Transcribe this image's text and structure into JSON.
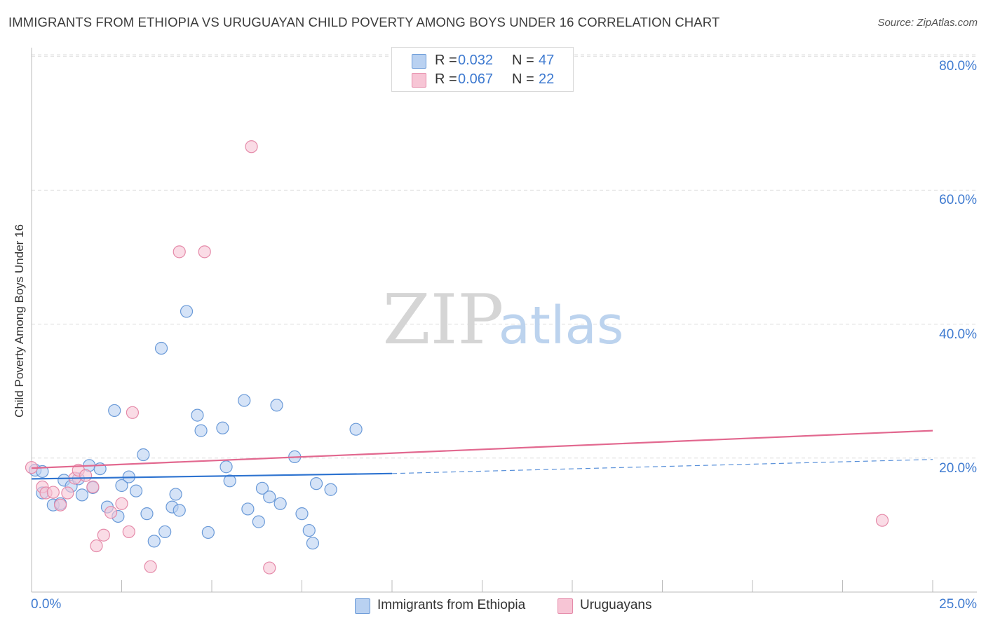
{
  "header": {
    "title": "IMMIGRANTS FROM ETHIOPIA VS URUGUAYAN CHILD POVERTY AMONG BOYS UNDER 16 CORRELATION CHART",
    "source": "Source: ZipAtlas.com"
  },
  "watermark": {
    "zip": "ZIP",
    "atlas": "atlas"
  },
  "stats_box": {
    "rows": [
      {
        "r_label": "R = ",
        "r_value": "0.032",
        "n_label": "N = ",
        "n_value": "47"
      },
      {
        "r_label": "R = ",
        "r_value": "0.067",
        "n_label": "N = ",
        "n_value": "22"
      }
    ]
  },
  "legend": {
    "items": [
      {
        "label": "Immigrants from Ethiopia"
      },
      {
        "label": "Uruguayans"
      }
    ]
  },
  "colors": {
    "blue_fill": "#b9d1f1",
    "blue_stroke": "#6a9ad8",
    "blue_line": "#2d73d0",
    "pink_fill": "#f7c5d5",
    "pink_stroke": "#e58aa9",
    "pink_line": "#e2688f",
    "tick_text": "#3e7ad0",
    "grid": "#dcdcdc"
  },
  "chart_data": {
    "type": "scatter",
    "ylabel": "Child Poverty Among Boys Under 16",
    "xlim": [
      0,
      25
    ],
    "ylim": [
      0,
      80
    ],
    "x_tick_labels": {
      "min": "0.0%",
      "max": "25.0%"
    },
    "y_ticks": [
      {
        "value": 20,
        "label": "20.0%"
      },
      {
        "value": 40,
        "label": "40.0%"
      },
      {
        "value": 60,
        "label": "60.0%"
      },
      {
        "value": 80,
        "label": "80.0%"
      }
    ],
    "grid": true,
    "legend_position": "bottom-center",
    "series": [
      {
        "name": "Immigrants from Ethiopia",
        "r": 0.032,
        "n": 47,
        "trend": {
          "x0": 0.0,
          "y0": 16.9,
          "x1": 10.0,
          "y1": 17.7,
          "dash_to_x": 25.0,
          "dash_to_y": 19.8
        },
        "points": [
          [
            0.1,
            18.2
          ],
          [
            0.3,
            18.0
          ],
          [
            0.3,
            14.8
          ],
          [
            0.6,
            13.0
          ],
          [
            0.8,
            13.2
          ],
          [
            0.9,
            16.7
          ],
          [
            1.1,
            15.8
          ],
          [
            1.3,
            16.9
          ],
          [
            1.4,
            14.5
          ],
          [
            1.6,
            18.9
          ],
          [
            1.7,
            15.6
          ],
          [
            1.9,
            18.4
          ],
          [
            2.1,
            12.7
          ],
          [
            2.3,
            27.1
          ],
          [
            2.4,
            11.3
          ],
          [
            2.5,
            15.9
          ],
          [
            2.7,
            17.2
          ],
          [
            2.9,
            15.1
          ],
          [
            3.1,
            20.5
          ],
          [
            3.2,
            11.7
          ],
          [
            3.4,
            7.6
          ],
          [
            3.6,
            36.4
          ],
          [
            3.7,
            9.0
          ],
          [
            3.9,
            12.7
          ],
          [
            4.0,
            14.6
          ],
          [
            4.1,
            12.2
          ],
          [
            4.3,
            41.9
          ],
          [
            4.6,
            26.4
          ],
          [
            4.7,
            24.1
          ],
          [
            4.9,
            8.9
          ],
          [
            5.3,
            24.5
          ],
          [
            5.4,
            18.7
          ],
          [
            5.5,
            16.6
          ],
          [
            5.9,
            28.6
          ],
          [
            6.0,
            12.4
          ],
          [
            6.3,
            10.5
          ],
          [
            6.4,
            15.5
          ],
          [
            6.6,
            14.2
          ],
          [
            6.8,
            27.9
          ],
          [
            6.9,
            13.2
          ],
          [
            7.3,
            20.2
          ],
          [
            7.5,
            11.7
          ],
          [
            7.7,
            9.2
          ],
          [
            7.8,
            7.3
          ],
          [
            7.9,
            16.2
          ],
          [
            8.3,
            15.3
          ],
          [
            9.0,
            24.3
          ]
        ]
      },
      {
        "name": "Uruguayans",
        "r": 0.067,
        "n": 22,
        "trend": {
          "x0": 0.0,
          "y0": 18.5,
          "x1": 25.0,
          "y1": 24.1
        },
        "points": [
          [
            0.0,
            18.6
          ],
          [
            0.3,
            15.7
          ],
          [
            0.4,
            14.8
          ],
          [
            0.6,
            14.9
          ],
          [
            0.8,
            13.0
          ],
          [
            1.0,
            14.8
          ],
          [
            1.2,
            17.0
          ],
          [
            1.3,
            18.2
          ],
          [
            1.5,
            17.4
          ],
          [
            1.7,
            15.7
          ],
          [
            1.8,
            6.9
          ],
          [
            2.0,
            8.5
          ],
          [
            2.2,
            11.9
          ],
          [
            2.5,
            13.2
          ],
          [
            2.7,
            9.0
          ],
          [
            2.8,
            26.8
          ],
          [
            3.3,
            3.8
          ],
          [
            4.1,
            50.8
          ],
          [
            4.8,
            50.8
          ],
          [
            6.1,
            66.5
          ],
          [
            6.6,
            3.6
          ],
          [
            23.6,
            10.7
          ]
        ]
      }
    ]
  }
}
